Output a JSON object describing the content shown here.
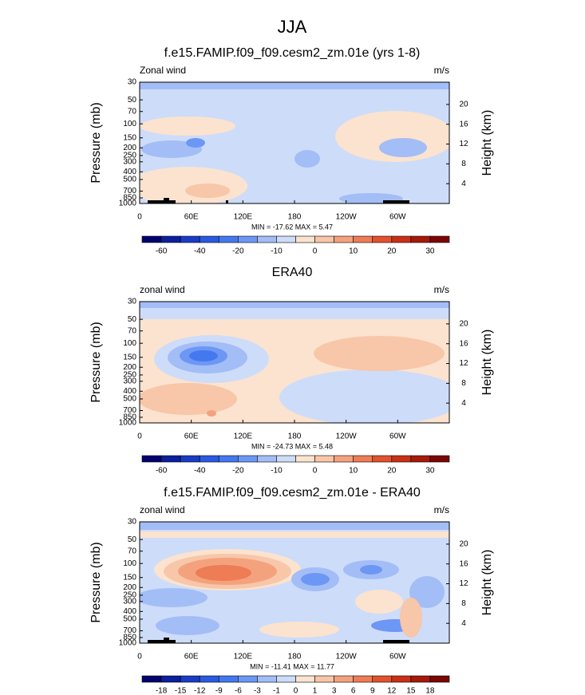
{
  "title": "JJA",
  "chart_data": [
    {
      "type": "contour",
      "title": "f.e15.FAMIP.f09_f09.cesm2_zm.01e (yrs 1-8)",
      "left_label": "Zonal wind",
      "right_label": "m/s",
      "ylabel": "Pressure (mb)",
      "y2label": "Height (km)",
      "ylog": true,
      "xlim": [
        0,
        360
      ],
      "xticks": [
        0,
        {
          "value": 60,
          "label": "60E"
        },
        {
          "value": 120,
          "label": "120E"
        },
        180,
        {
          "value": 240,
          "label": "120W"
        },
        {
          "value": 300,
          "label": "60W"
        }
      ],
      "ylim": [
        1000,
        30
      ],
      "yticks": [
        30,
        50,
        70,
        100,
        150,
        200,
        250,
        300,
        400,
        500,
        700,
        850,
        1000
      ],
      "y2lim": [
        0,
        24.5
      ],
      "y2ticks": [
        4,
        8,
        12,
        16,
        20
      ],
      "stats": "MIN = -17.62  MAX =  5.47",
      "colorbar_ticks": [
        -60,
        -40,
        -20,
        -10,
        0,
        10,
        20,
        30
      ],
      "colorbar_colors": [
        "#03036e",
        "#0c1f9c",
        "#1a3cc4",
        "#2a5ae0",
        "#4478ee",
        "#6d97f4",
        "#a3bdf6",
        "#cddcf9",
        "#fbe3cf",
        "#f8c6a8",
        "#f4a27d",
        "#ee7c55",
        "#e2522e",
        "#c83116",
        "#a51a0a",
        "#7a0606"
      ]
    },
    {
      "type": "contour",
      "title": "ERA40",
      "left_label": "zonal wind",
      "right_label": "m/s",
      "ylabel": "Pressure (mb)",
      "y2label": "Height (km)",
      "ylog": true,
      "xlim": [
        0,
        360
      ],
      "xticks": [
        0,
        {
          "value": 60,
          "label": "60E"
        },
        {
          "value": 120,
          "label": "120E"
        },
        180,
        {
          "value": 240,
          "label": "120W"
        },
        {
          "value": 300,
          "label": "60W"
        }
      ],
      "ylim": [
        1000,
        30
      ],
      "yticks": [
        30,
        50,
        70,
        100,
        150,
        200,
        250,
        300,
        400,
        500,
        700,
        850,
        1000
      ],
      "y2lim": [
        0,
        24.5
      ],
      "y2ticks": [
        4,
        8,
        12,
        16,
        20
      ],
      "stats": "MIN = -24.73  MAX =  5.48",
      "colorbar_ticks": [
        -60,
        -40,
        -20,
        -10,
        0,
        10,
        20,
        30
      ],
      "colorbar_colors": [
        "#03036e",
        "#0c1f9c",
        "#1a3cc4",
        "#2a5ae0",
        "#4478ee",
        "#6d97f4",
        "#a3bdf6",
        "#cddcf9",
        "#fbe3cf",
        "#f8c6a8",
        "#f4a27d",
        "#ee7c55",
        "#e2522e",
        "#c83116",
        "#a51a0a",
        "#7a0606"
      ]
    },
    {
      "type": "contour",
      "title": "f.e15.FAMIP.f09_f09.cesm2_zm.01e - ERA40",
      "left_label": "zonal wind",
      "right_label": "m/s",
      "ylabel": "Pressure (mb)",
      "y2label": "Height (km)",
      "ylog": true,
      "xlim": [
        0,
        360
      ],
      "xticks": [
        0,
        {
          "value": 60,
          "label": "60E"
        },
        {
          "value": 120,
          "label": "120E"
        },
        180,
        {
          "value": 240,
          "label": "120W"
        },
        {
          "value": 300,
          "label": "60W"
        }
      ],
      "ylim": [
        1000,
        30
      ],
      "yticks": [
        30,
        50,
        70,
        100,
        150,
        200,
        250,
        300,
        400,
        500,
        700,
        850,
        1000
      ],
      "y2lim": [
        0,
        24.5
      ],
      "y2ticks": [
        4,
        8,
        12,
        16,
        20
      ],
      "stats": "MIN = -11.41  MAX = 11.77",
      "colorbar_ticks": [
        -18,
        -15,
        -12,
        -9,
        -6,
        -3,
        -1,
        0,
        1,
        3,
        6,
        9,
        12,
        15,
        18
      ],
      "colorbar_colors": [
        "#03036e",
        "#0c1f9c",
        "#1a3cc4",
        "#2a5ae0",
        "#4478ee",
        "#6d97f4",
        "#a3bdf6",
        "#cddcf9",
        "#fbe3cf",
        "#f8c6a8",
        "#f4a27d",
        "#ee7c55",
        "#e2522e",
        "#c83116",
        "#a51a0a",
        "#7a0606"
      ]
    }
  ]
}
